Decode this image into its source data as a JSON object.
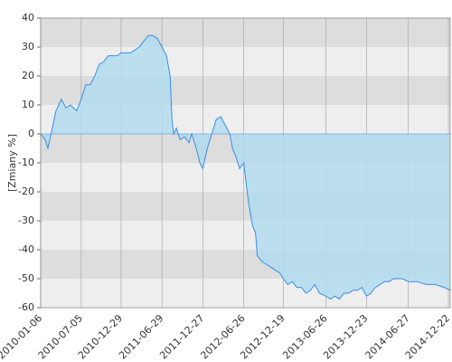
{
  "chart_data": {
    "type": "area",
    "y_label": "[Zmiany %]",
    "x": [
      "2010-01-06",
      "2010-01-26",
      "2010-02-07",
      "2010-02-27",
      "2010-03-15",
      "2010-04-08",
      "2010-04-28",
      "2010-05-18",
      "2010-06-15",
      "2010-07-05",
      "2010-07-25",
      "2010-08-14",
      "2010-09-03",
      "2010-09-23",
      "2010-10-13",
      "2010-11-02",
      "2010-12-12",
      "2010-12-29",
      "2011-02-08",
      "2011-02-28",
      "2011-03-20",
      "2011-04-09",
      "2011-04-29",
      "2011-05-19",
      "2011-06-08",
      "2011-06-29",
      "2011-07-19",
      "2011-08-04",
      "2011-08-12",
      "2011-08-20",
      "2011-09-01",
      "2011-09-17",
      "2011-10-07",
      "2011-10-27",
      "2011-11-08",
      "2011-11-28",
      "2011-12-14",
      "2011-12-27",
      "2012-01-16",
      "2012-02-05",
      "2012-02-25",
      "2012-03-16",
      "2012-04-05",
      "2012-04-25",
      "2012-05-07",
      "2012-05-23",
      "2012-06-08",
      "2012-06-26",
      "2012-07-08",
      "2012-07-20",
      "2012-08-05",
      "2012-08-17",
      "2012-08-25",
      "2012-09-14",
      "2012-10-04",
      "2012-10-24",
      "2012-11-13",
      "2012-12-03",
      "2012-12-19",
      "2013-01-08",
      "2013-01-28",
      "2013-02-17",
      "2013-03-09",
      "2013-03-29",
      "2013-04-18",
      "2013-05-08",
      "2013-05-28",
      "2013-06-26",
      "2013-07-16",
      "2013-08-05",
      "2013-08-25",
      "2013-09-14",
      "2013-10-04",
      "2013-10-24",
      "2013-11-13",
      "2013-12-03",
      "2013-12-23",
      "2014-01-12",
      "2014-02-01",
      "2014-02-21",
      "2014-03-13",
      "2014-04-02",
      "2014-04-22",
      "2014-05-12",
      "2014-06-01",
      "2014-06-27",
      "2014-08-06",
      "2014-09-15",
      "2014-10-25",
      "2014-12-04",
      "2014-12-30"
    ],
    "series": [
      {
        "color": "#3a8ee6",
        "fill_color": "#b3dcee",
        "values": [
          0,
          -2,
          -5,
          2,
          8,
          12,
          9,
          10,
          8,
          12,
          17,
          17,
          20,
          24,
          25,
          27,
          27,
          28,
          28,
          29,
          30,
          32,
          34,
          34,
          33,
          30,
          27,
          20,
          5,
          0,
          2,
          -2,
          -1,
          -3,
          0,
          -5,
          -10,
          -12,
          -5,
          0,
          5,
          6,
          3,
          0,
          -5,
          -8,
          -12,
          -10,
          -18,
          -25,
          -32,
          -34,
          -42,
          -44,
          -45,
          -46,
          -47,
          -48,
          -50,
          -52,
          -51,
          -53,
          -53,
          -55,
          -54,
          -52,
          -55,
          -56,
          -57,
          -56,
          -57,
          -55,
          -55,
          -54,
          -54,
          -53,
          -56,
          -55,
          -53,
          -52,
          -51,
          -51,
          -50,
          -50,
          -50,
          -51,
          -51,
          -52,
          -52,
          -53,
          -54
        ]
      }
    ],
    "xlim": [
      "2010-01-06",
      "2014-12-30"
    ],
    "xticks": [
      "2010-01-06",
      "2010-07-05",
      "2010-12-29",
      "2011-06-29",
      "2011-12-27",
      "2012-06-26",
      "2012-12-19",
      "2013-06-26",
      "2013-12-23",
      "2014-06-27",
      "2014-12-22"
    ],
    "ylim": [
      -60,
      40
    ],
    "yticks": [
      -60,
      -50,
      -40,
      -30,
      -20,
      -10,
      0,
      10,
      20,
      30,
      40
    ],
    "band_colors": [
      "#eeeeee",
      "#dddddd"
    ],
    "grid_color": "#aaaaaa"
  }
}
